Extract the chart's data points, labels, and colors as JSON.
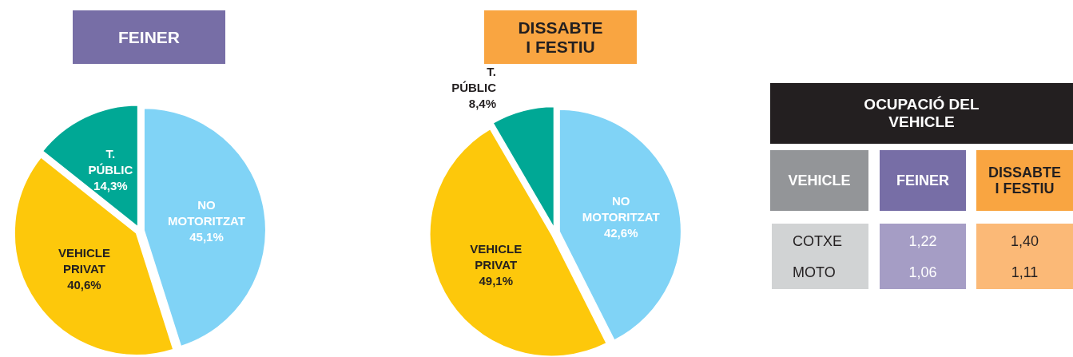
{
  "chart_data": [
    {
      "type": "pie",
      "title": "FEINER",
      "categories": [
        "NO MOTORITZAT",
        "VEHICLE PRIVAT",
        "T. PÚBLIC"
      ],
      "values": [
        45.1,
        40.6,
        14.3
      ],
      "colors": [
        "#80d3f6",
        "#fdc80b",
        "#00a895"
      ],
      "value_labels": [
        "45,1%",
        "40,6%",
        "14,3%"
      ]
    },
    {
      "type": "pie",
      "title": "DISSABTE I FESTIU",
      "categories": [
        "NO MOTORITZAT",
        "VEHICLE PRIVAT",
        "T. PÚBLIC"
      ],
      "values": [
        42.6,
        49.1,
        8.4
      ],
      "colors": [
        "#80d3f6",
        "#fdc80b",
        "#00a895"
      ],
      "value_labels": [
        "42,6%",
        "49,1%",
        "8,4%"
      ]
    },
    {
      "type": "other",
      "title": "OCUPACIÓ DEL VEHICLE",
      "ylabel": "VEHICLE",
      "categories": [
        "FEINER",
        "DISSABTE I FESTIU"
      ],
      "y_categories": [
        "COTXE",
        "MOTO"
      ],
      "cell_labels": [
        [
          "1,22",
          "1,40"
        ],
        [
          "1,06",
          "1,11"
        ]
      ]
    }
  ]
}
